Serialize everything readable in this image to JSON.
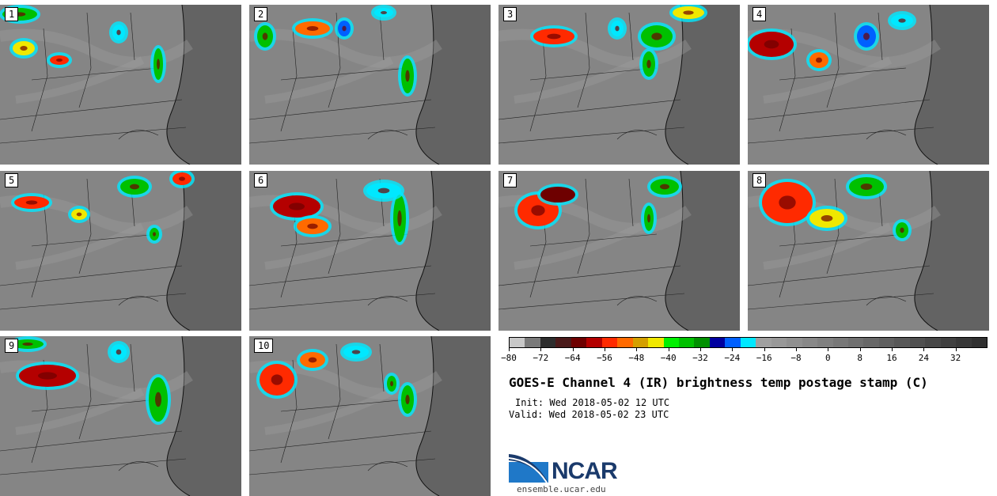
{
  "panels": [
    {
      "label": "1"
    },
    {
      "label": "2"
    },
    {
      "label": "3"
    },
    {
      "label": "4"
    },
    {
      "label": "5"
    },
    {
      "label": "6"
    },
    {
      "label": "7"
    },
    {
      "label": "8"
    },
    {
      "label": "9"
    },
    {
      "label": "10"
    }
  ],
  "colorbar": {
    "colors": [
      "#c8c8c8",
      "#7a7a7a",
      "#2d2d2d",
      "#4a1a1a",
      "#6e0000",
      "#b40000",
      "#ff2a00",
      "#ff6a00",
      "#d4a000",
      "#f0e800",
      "#00f000",
      "#00c000",
      "#009000",
      "#0000a0",
      "#0060ff",
      "#00e8ff",
      "#a0a0a0",
      "#989898",
      "#909090",
      "#888888",
      "#808080",
      "#787878",
      "#707070",
      "#686868",
      "#606060",
      "#585858",
      "#505050",
      "#484848",
      "#404040",
      "#383838",
      "#303030"
    ],
    "tick_labels": [
      "−80",
      "−72",
      "−64",
      "−56",
      "−48",
      "−40",
      "−32",
      "−24",
      "−16",
      "−8",
      "0",
      "8",
      "16",
      "24",
      "32"
    ],
    "range": [
      -80,
      40
    ],
    "step": 8
  },
  "title": "GOES-E Channel 4 (IR) brightness temp postage stamp (C)",
  "init_text": "Init: Wed 2018-05-02 12 UTC",
  "valid_text": "Valid: Wed 2018-05-02 23 UTC",
  "logo": {
    "name": "NCAR",
    "url": "ensemble.ucar.edu"
  }
}
